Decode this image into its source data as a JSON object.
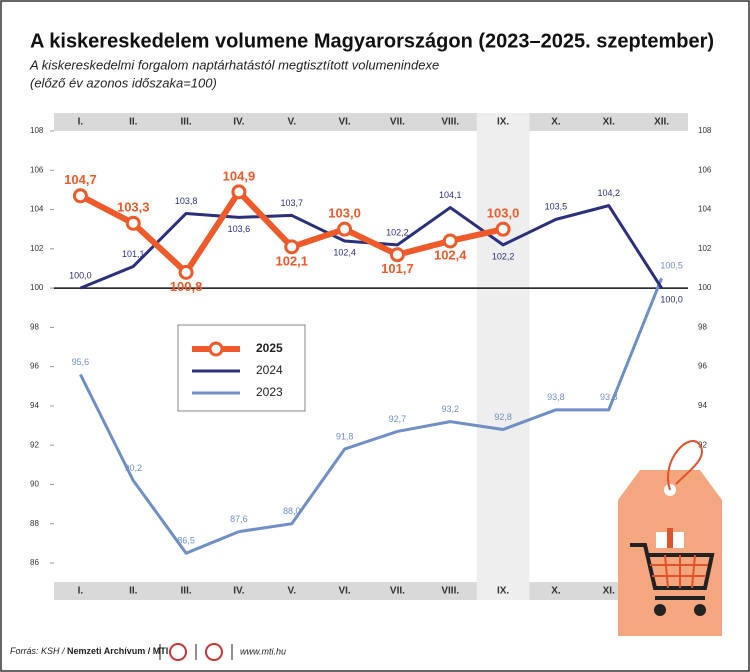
{
  "chart_data": {
    "type": "line",
    "title": "A kiskereskedelem volumene Magyarországon (2023–2025. szeptember)",
    "subtitle": "A kiskereskedelmi forgalom naptárhatástól megtisztított volumenindexe",
    "subtitle2": "(előző év azonos időszaka=100)",
    "categories": [
      "I.",
      "II.",
      "III.",
      "IV.",
      "V.",
      "VI.",
      "VII.",
      "VIII.",
      "IX.",
      "X.",
      "XI.",
      "XII."
    ],
    "series": [
      {
        "name": "2025",
        "color": "#ee5a2a",
        "values": [
          104.7,
          103.3,
          100.8,
          104.9,
          102.1,
          103.0,
          101.7,
          102.4,
          103.0,
          null,
          null,
          null
        ],
        "value_labels": [
          "104,7",
          "103,3",
          "100,8",
          "104,9",
          "102,1",
          "103,0",
          "101,7",
          "102,4",
          "103,0",
          null,
          null,
          null
        ]
      },
      {
        "name": "2024",
        "color": "#2b2f7e",
        "values": [
          100.0,
          101.1,
          103.8,
          103.6,
          103.7,
          102.4,
          102.2,
          104.1,
          102.2,
          103.5,
          104.2,
          100.0
        ],
        "value_labels": [
          "100,0",
          "101,1",
          "103,8",
          "103,6",
          "103,7",
          "102,4",
          "102,2",
          "104,1",
          "102,2",
          "103,5",
          "104,2",
          "100,0"
        ]
      },
      {
        "name": "2023",
        "color": "#6f8fc6",
        "values": [
          95.6,
          90.2,
          86.5,
          87.6,
          88.0,
          91.8,
          92.7,
          93.2,
          92.8,
          93.8,
          93.8,
          100.5
        ],
        "value_labels": [
          "95,6",
          "90,2",
          "86,5",
          "87,6",
          "88,0",
          "91,8",
          "92,7",
          "93,2",
          "92,8",
          "93,8",
          "93,8",
          "100,5"
        ]
      }
    ],
    "ylim": [
      85,
      108
    ],
    "yticks": [
      86,
      88,
      90,
      92,
      94,
      96,
      98,
      100,
      102,
      104,
      106,
      108
    ],
    "baseline": 100,
    "highlight_category": 8,
    "source": "Forrás: KSH / ",
    "source_bold": "Nemzeti Archívum / MTI",
    "website": "www.mti.hu"
  }
}
